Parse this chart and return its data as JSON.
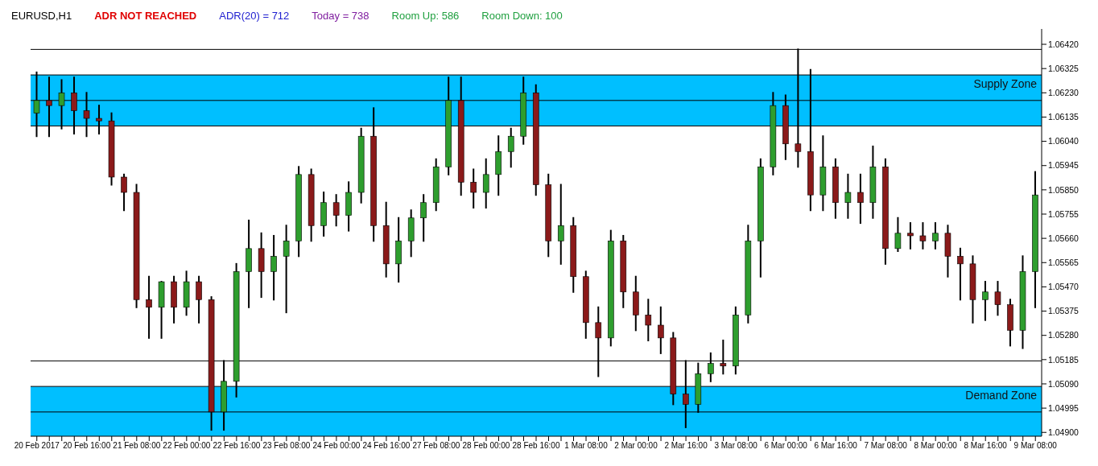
{
  "chart_data": {
    "type": "candlestick",
    "annotations": [
      "EURUSD,H1",
      "ADR NOT REACHED",
      "ADR(20) = 712",
      "Today = 738",
      "Room Up: 586",
      "Room Down: 100"
    ],
    "categories": [
      "20 Feb 2017",
      null,
      null,
      null,
      "20 Feb 16:00",
      null,
      null,
      null,
      "21 Feb 08:00",
      null,
      null,
      null,
      "22 Feb 00:00",
      null,
      null,
      null,
      "22 Feb 16:00",
      null,
      null,
      null,
      "23 Feb 08:00",
      null,
      null,
      null,
      "24 Feb 00:00",
      null,
      null,
      null,
      "24 Feb 16:00",
      null,
      null,
      null,
      "27 Feb 08:00",
      null,
      null,
      null,
      "28 Feb 00:00",
      null,
      null,
      null,
      "28 Feb 16:00",
      null,
      null,
      null,
      "1 Mar 08:00",
      null,
      null,
      null,
      "2 Mar 00:00",
      null,
      null,
      null,
      "2 Mar 16:00",
      null,
      null,
      null,
      "3 Mar 08:00",
      null,
      null,
      null,
      "6 Mar 00:00",
      null,
      null,
      null,
      "6 Mar 16:00",
      null,
      null,
      null,
      "7 Mar 08:00",
      null,
      null,
      null,
      "8 Mar 00:00",
      null,
      null,
      null,
      "8 Mar 16:00",
      null,
      null,
      null,
      "9 Mar 08:00"
    ],
    "ohlc": [
      [
        1.0615,
        1.0631,
        1.0606,
        1.062
      ],
      [
        1.062,
        1.0629,
        1.0606,
        1.0618
      ],
      [
        1.0618,
        1.0628,
        1.0609,
        1.0623
      ],
      [
        1.0623,
        1.0629,
        1.0607,
        1.0616
      ],
      [
        1.0616,
        1.0623,
        1.0606,
        1.0613
      ],
      [
        1.0613,
        1.0618,
        1.0607,
        1.0612
      ],
      [
        1.0612,
        1.0615,
        1.0587,
        1.059
      ],
      [
        1.059,
        1.0591,
        1.0577,
        1.0584
      ],
      [
        1.0584,
        1.0587,
        1.0539,
        1.0542
      ],
      [
        1.0542,
        1.0551,
        1.0527,
        1.0539
      ],
      [
        1.0539,
        1.0549,
        1.0527,
        1.0549
      ],
      [
        1.0549,
        1.0551,
        1.0533,
        1.0539
      ],
      [
        1.0539,
        1.0553,
        1.0536,
        1.0549
      ],
      [
        1.0549,
        1.0551,
        1.0533,
        1.0542
      ],
      [
        1.0542,
        1.0543,
        1.0491,
        1.0498
      ],
      [
        1.0498,
        1.0518,
        1.0491,
        1.051
      ],
      [
        1.051,
        1.0556,
        1.0504,
        1.0553
      ],
      [
        1.0553,
        1.0573,
        1.0539,
        1.0562
      ],
      [
        1.0562,
        1.0568,
        1.0543,
        1.0553
      ],
      [
        1.0553,
        1.0567,
        1.0542,
        1.0559
      ],
      [
        1.0559,
        1.0571,
        1.0537,
        1.0565
      ],
      [
        1.0565,
        1.0594,
        1.0559,
        1.0591
      ],
      [
        1.0591,
        1.0593,
        1.0565,
        1.0571
      ],
      [
        1.0571,
        1.0584,
        1.0567,
        1.058
      ],
      [
        1.058,
        1.0583,
        1.0571,
        1.0575
      ],
      [
        1.0575,
        1.0588,
        1.0569,
        1.0584
      ],
      [
        1.0584,
        1.0609,
        1.058,
        1.0606
      ],
      [
        1.0606,
        1.0617,
        1.0565,
        1.0571
      ],
      [
        1.0571,
        1.058,
        1.0551,
        1.0556
      ],
      [
        1.0556,
        1.0574,
        1.0549,
        1.0565
      ],
      [
        1.0565,
        1.0577,
        1.0559,
        1.0574
      ],
      [
        1.0574,
        1.0583,
        1.0565,
        1.058
      ],
      [
        1.058,
        1.0597,
        1.0577,
        1.0594
      ],
      [
        1.0594,
        1.0629,
        1.0591,
        1.062
      ],
      [
        1.062,
        1.0629,
        1.0583,
        1.0588
      ],
      [
        1.0588,
        1.0593,
        1.0578,
        1.0584
      ],
      [
        1.0584,
        1.0597,
        1.0578,
        1.0591
      ],
      [
        1.0591,
        1.0606,
        1.0583,
        1.06
      ],
      [
        1.06,
        1.0609,
        1.0594,
        1.0606
      ],
      [
        1.0606,
        1.0629,
        1.0603,
        1.0623
      ],
      [
        1.0623,
        1.0626,
        1.0583,
        1.0587
      ],
      [
        1.0587,
        1.0591,
        1.0559,
        1.0565
      ],
      [
        1.0565,
        1.0587,
        1.0556,
        1.0571
      ],
      [
        1.0571,
        1.0574,
        1.0545,
        1.0551
      ],
      [
        1.0551,
        1.0553,
        1.0527,
        1.0533
      ],
      [
        1.0533,
        1.0539,
        1.0512,
        1.0527
      ],
      [
        1.0527,
        1.0569,
        1.0524,
        1.0565
      ],
      [
        1.0565,
        1.0567,
        1.0539,
        1.0545
      ],
      [
        1.0545,
        1.0551,
        1.053,
        1.0536
      ],
      [
        1.0536,
        1.0542,
        1.0526,
        1.0532
      ],
      [
        1.0532,
        1.0539,
        1.0521,
        1.0527
      ],
      [
        1.0527,
        1.0529,
        1.0501,
        1.0505
      ],
      [
        1.0505,
        1.0518,
        1.0492,
        1.0501
      ],
      [
        1.0501,
        1.0517,
        1.0498,
        1.0513
      ],
      [
        1.0513,
        1.0521,
        1.051,
        1.0517
      ],
      [
        1.0517,
        1.0526,
        1.0513,
        1.0516
      ],
      [
        1.0516,
        1.0539,
        1.0513,
        1.0536
      ],
      [
        1.0536,
        1.0571,
        1.0533,
        1.0565
      ],
      [
        1.0565,
        1.0597,
        1.0551,
        1.0594
      ],
      [
        1.0594,
        1.0623,
        1.0591,
        1.0618
      ],
      [
        1.0618,
        1.0622,
        1.0597,
        1.0603
      ],
      [
        1.0603,
        1.064,
        1.0594,
        1.06
      ],
      [
        1.06,
        1.0632,
        1.0577,
        1.0583
      ],
      [
        1.0583,
        1.0606,
        1.0577,
        1.0594
      ],
      [
        1.0594,
        1.0597,
        1.0574,
        1.058
      ],
      [
        1.058,
        1.0591,
        1.0574,
        1.0584
      ],
      [
        1.0584,
        1.0591,
        1.0572,
        1.058
      ],
      [
        1.058,
        1.0602,
        1.0574,
        1.0594
      ],
      [
        1.0594,
        1.0597,
        1.0556,
        1.0562
      ],
      [
        1.0562,
        1.0574,
        1.0561,
        1.0568
      ],
      [
        1.0568,
        1.0572,
        1.0562,
        1.0567
      ],
      [
        1.0567,
        1.0572,
        1.0562,
        1.0565
      ],
      [
        1.0565,
        1.0572,
        1.0562,
        1.0568
      ],
      [
        1.0568,
        1.0571,
        1.0551,
        1.0559
      ],
      [
        1.0559,
        1.0562,
        1.0542,
        1.0556
      ],
      [
        1.0556,
        1.0559,
        1.0533,
        1.0542
      ],
      [
        1.0542,
        1.0549,
        1.0534,
        1.0545
      ],
      [
        1.0545,
        1.0549,
        1.0536,
        1.054
      ],
      [
        1.054,
        1.0542,
        1.0524,
        1.053
      ],
      [
        1.053,
        1.0559,
        1.0523,
        1.0553
      ],
      [
        1.0553,
        1.0592,
        1.0539,
        1.0583
      ]
    ],
    "colors": [
      "#2e9e2e",
      "#8b1a1a",
      "#2e9e2e",
      "#8b1a1a",
      "#8b1a1a",
      "#8b1a1a",
      "#8b1a1a",
      "#8b1a1a",
      "#8b1a1a",
      "#8b1a1a",
      "#2e9e2e",
      "#8b1a1a",
      "#2e9e2e",
      "#8b1a1a",
      "#8b1a1a",
      "#2e9e2e",
      "#2e9e2e",
      "#2e9e2e",
      "#8b1a1a",
      "#2e9e2e",
      "#2e9e2e",
      "#2e9e2e",
      "#8b1a1a",
      "#2e9e2e",
      "#8b1a1a",
      "#2e9e2e",
      "#2e9e2e",
      "#8b1a1a",
      "#8b1a1a",
      "#2e9e2e",
      "#2e9e2e",
      "#2e9e2e",
      "#2e9e2e",
      "#2e9e2e",
      "#8b1a1a",
      "#8b1a1a",
      "#2e9e2e",
      "#2e9e2e",
      "#2e9e2e",
      "#2e9e2e",
      "#8b1a1a",
      "#8b1a1a",
      "#2e9e2e",
      "#8b1a1a",
      "#8b1a1a",
      "#8b1a1a",
      "#2e9e2e",
      "#8b1a1a",
      "#8b1a1a",
      "#8b1a1a",
      "#8b1a1a",
      "#8b1a1a",
      "#8b1a1a",
      "#2e9e2e",
      "#2e9e2e",
      "#8b1a1a",
      "#2e9e2e",
      "#2e9e2e",
      "#2e9e2e",
      "#2e9e2e",
      "#8b1a1a",
      "#8b1a1a",
      "#8b1a1a",
      "#2e9e2e",
      "#8b1a1a",
      "#2e9e2e",
      "#8b1a1a",
      "#2e9e2e",
      "#8b1a1a",
      "#2e9e2e",
      "#8b1a1a",
      "#8b1a1a",
      "#2e9e2e",
      "#8b1a1a",
      "#8b1a1a",
      "#8b1a1a",
      "#2e9e2e",
      "#8b1a1a",
      "#8b1a1a",
      "#2e9e2e",
      "#2e9e2e"
    ],
    "ylim": [
      1.04885,
      1.0648
    ],
    "yticks": [
      {
        "value": 1.049,
        "label": "1.04900"
      },
      1.04995,
      {
        "value": 1.0509,
        "label": "1.05090"
      },
      1.05185,
      {
        "value": 1.0528,
        "label": "1.05280"
      },
      1.05375,
      {
        "value": 1.0547,
        "label": "1.05470"
      },
      1.05565,
      {
        "value": 1.0566,
        "label": "1.05660"
      },
      1.05755,
      {
        "value": 1.0585,
        "label": "1.05850"
      },
      1.05945,
      {
        "value": 1.0604,
        "label": "1.06040"
      },
      1.06135,
      {
        "value": 1.0623,
        "label": "1.06230"
      },
      1.06325,
      {
        "value": 1.0642,
        "label": "1.06420"
      }
    ],
    "bands": [
      {
        "axis": "y",
        "from": 1.061,
        "to": 1.063,
        "label": "Supply Zone",
        "color": "#00bfff"
      },
      {
        "axis": "y",
        "from": 1.04885,
        "to": 1.0508,
        "label": "Demand Zone",
        "color": "#00bfff"
      }
    ],
    "ref_lines": [
      {
        "axis": "y",
        "value": 1.064,
        "color": "#000000"
      },
      {
        "axis": "y",
        "value": 1.063,
        "color": "#000000"
      },
      {
        "axis": "y",
        "value": 1.062,
        "color": "#000000"
      },
      {
        "axis": "y",
        "value": 1.061,
        "color": "#000000"
      },
      {
        "axis": "y",
        "value": 1.0518,
        "color": "#000000"
      },
      {
        "axis": "y",
        "value": 1.0508,
        "color": "#000000"
      },
      {
        "axis": "y",
        "value": 1.0498,
        "color": "#000000"
      }
    ],
    "grid": false,
    "legend": false
  }
}
